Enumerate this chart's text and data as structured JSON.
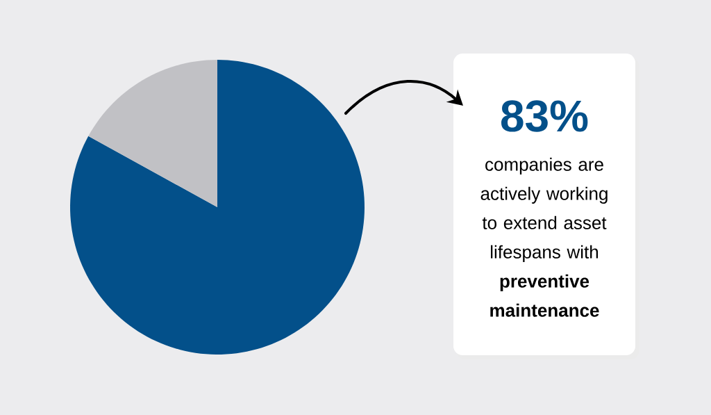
{
  "chart_data": {
    "type": "pie",
    "categories": [
      null,
      null
    ],
    "values": [
      83,
      17
    ],
    "colors": [
      "#03508a",
      "#c1c1c5"
    ],
    "annotations": [
      "83%",
      "companies are actively working to extend asset lifespans with **preventive maintenance**"
    ]
  }
}
